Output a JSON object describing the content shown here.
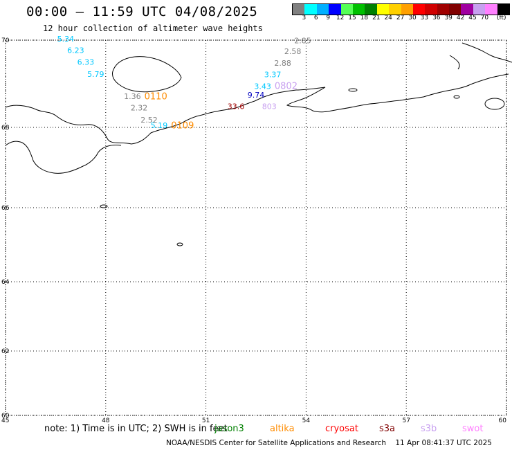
{
  "header": {
    "title": "00:00 – 11:59 UTC 04/08/2025",
    "subtitle": "12 hour collection of altimeter wave heights"
  },
  "legend": {
    "colors": [
      "#808080",
      "#00ffff",
      "#00b0ff",
      "#0000ff",
      "#55ff55",
      "#00c000",
      "#008000",
      "#ffff00",
      "#ffd000",
      "#ffa000",
      "#ff0000",
      "#d00000",
      "#a00000",
      "#800000",
      "#a000a0",
      "#c8a0f0",
      "#ff80ff",
      "#000000"
    ],
    "ticks": [
      "3",
      "6",
      "9",
      "12",
      "15",
      "18",
      "21",
      "24",
      "27",
      "30",
      "33",
      "36",
      "39",
      "42",
      "45",
      "70"
    ],
    "unit": "(ft)"
  },
  "map": {
    "lat_labels": [
      "70",
      "68",
      "66",
      "64",
      "62",
      "60"
    ],
    "lon_labels": [
      "45",
      "48",
      "51",
      "54",
      "57",
      "60"
    ],
    "observations": [
      {
        "text": "5.34",
        "color": "#00c8ff",
        "lon": 46.8,
        "lat": 69.97
      },
      {
        "text": "6.23",
        "color": "#00c8ff",
        "lon": 47.1,
        "lat": 69.71
      },
      {
        "text": "6.33",
        "color": "#00c8ff",
        "lon": 47.4,
        "lat": 69.44
      },
      {
        "text": "5.79",
        "color": "#00c8ff",
        "lon": 47.7,
        "lat": 69.16
      },
      {
        "text": "1.36",
        "color": "#808080",
        "lon": 48.8,
        "lat": 68.65
      },
      {
        "text": "0110",
        "color": "#ff8c00",
        "lon": 49.5,
        "lat": 68.64
      },
      {
        "text": "2.32",
        "color": "#808080",
        "lon": 49.0,
        "lat": 68.39
      },
      {
        "text": "2.52",
        "color": "#808080",
        "lon": 49.3,
        "lat": 68.11
      },
      {
        "text": "0109",
        "color": "#ff8c00",
        "lon": 50.3,
        "lat": 67.97
      },
      {
        "text": "5.19",
        "color": "#00c8ff",
        "lon": 49.6,
        "lat": 67.98
      },
      {
        "text": "2.85",
        "color": "#808080",
        "lon": 53.9,
        "lat": 69.93
      },
      {
        "text": "2.58",
        "color": "#808080",
        "lon": 53.6,
        "lat": 69.68
      },
      {
        "text": "2.88",
        "color": "#808080",
        "lon": 53.3,
        "lat": 69.41
      },
      {
        "text": "3.37",
        "color": "#00c8ff",
        "lon": 53.0,
        "lat": 69.15
      },
      {
        "text": "3.43",
        "color": "#00c8ff",
        "lon": 52.7,
        "lat": 68.88
      },
      {
        "text": "0802",
        "color": "#c8a0f0",
        "lon": 53.4,
        "lat": 68.88
      },
      {
        "text": "9.74",
        "color": "#0000c0",
        "lon": 52.5,
        "lat": 68.68
      },
      {
        "text": "33.6",
        "color": "#a00000",
        "lon": 51.9,
        "lat": 68.42
      },
      {
        "text": "803",
        "color": "#c8a0f0",
        "lon": 52.9,
        "lat": 68.42
      }
    ]
  },
  "footer": {
    "note": "note: 1) Time is in UTC; 2) SWH is in feet",
    "satellites": [
      {
        "name": "jason3",
        "color": "#008000"
      },
      {
        "name": "altika",
        "color": "#ff8c00"
      },
      {
        "name": "cryosat",
        "color": "#ff0000"
      },
      {
        "name": "s3a",
        "color": "#800000"
      },
      {
        "name": "s3b",
        "color": "#c8a0f0"
      },
      {
        "name": "swot",
        "color": "#ff80ff"
      }
    ],
    "credit": "NOAA/NESDIS Center for Satellite Applications and Research",
    "timestamp": "11 Apr 08:41:37 UTC 2025"
  }
}
